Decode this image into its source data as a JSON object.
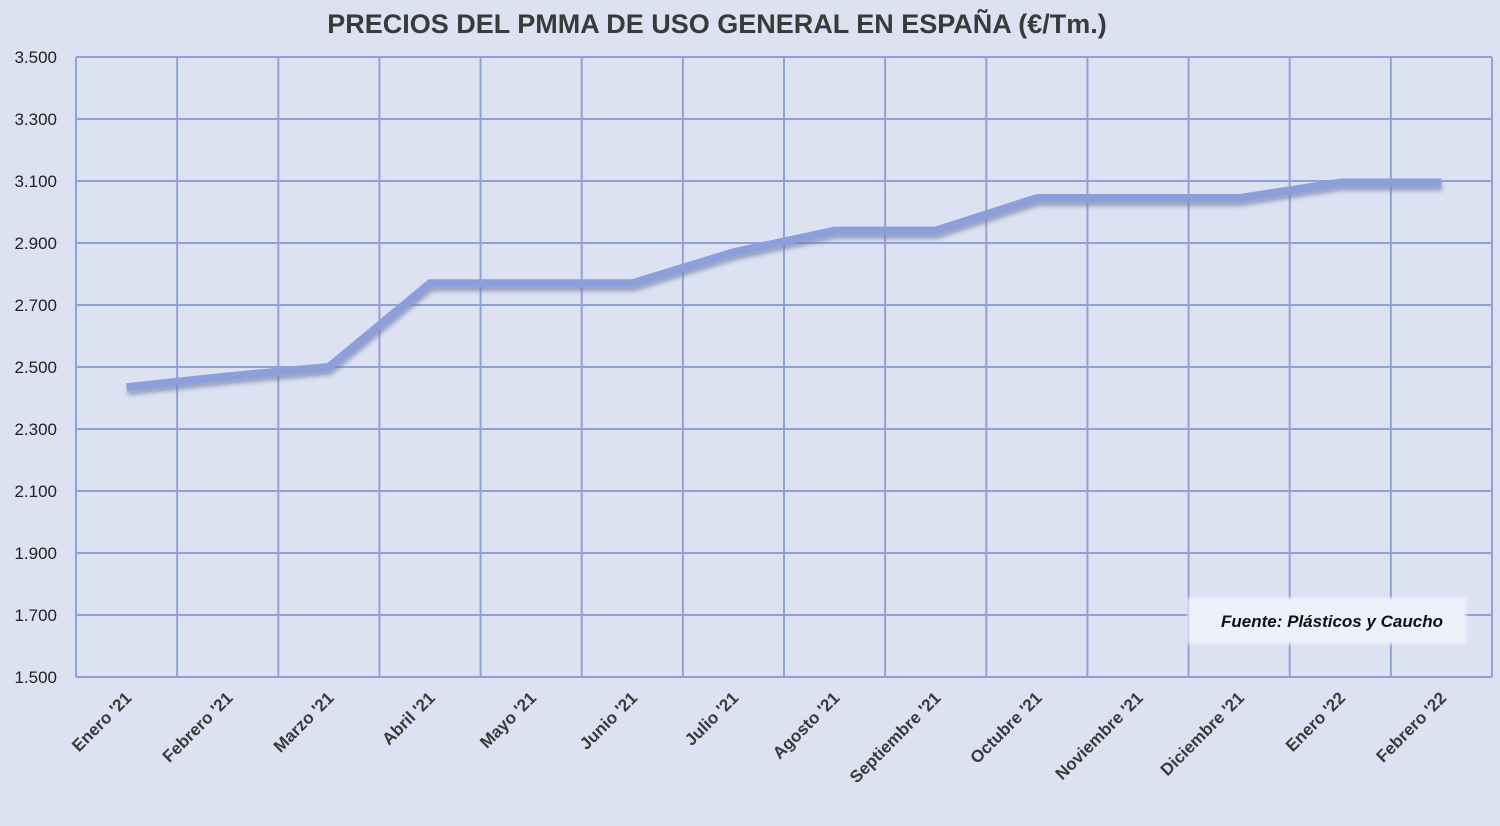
{
  "chart_data": {
    "type": "line",
    "title": "PRECIOS DEL PMMA  DE USO GENERAL EN ESPAÑA  (€/Tm.)",
    "xlabel": "",
    "ylabel": "",
    "categories": [
      "Enero '21",
      "Febrero '21",
      "Marzo '21",
      "Abril '21",
      "Mayo '21",
      "Junio '21",
      "Julio '21",
      "Agosto '21",
      "Septiembre '21",
      "Octubre '21",
      "Noviembre '21",
      "Diciembre '21",
      "Enero '22",
      "Febrero '22"
    ],
    "series": [
      {
        "values": [
          2435,
          2470,
          2500,
          2770,
          2770,
          2770,
          2870,
          2940,
          2940,
          3045,
          3045,
          3045,
          3095,
          3095
        ]
      }
    ],
    "ylim": [
      1500,
      3500
    ],
    "yticks": [
      1500,
      1700,
      1900,
      2100,
      2300,
      2500,
      2700,
      2900,
      3100,
      3300,
      3500
    ],
    "ytick_labels": [
      "1.500",
      "1.700",
      "1.900",
      "2.100",
      "2.300",
      "2.500",
      "2.700",
      "2.900",
      "3.100",
      "3.300",
      "3.500"
    ],
    "grid": true,
    "legend": "none",
    "annotation": "Fuente: Plásticos y Caucho",
    "colors": {
      "background": "#dde2f2",
      "grid": "#8fa2d8",
      "line": "#8c9fdb",
      "line_shadow": "#6c7aa8"
    }
  }
}
